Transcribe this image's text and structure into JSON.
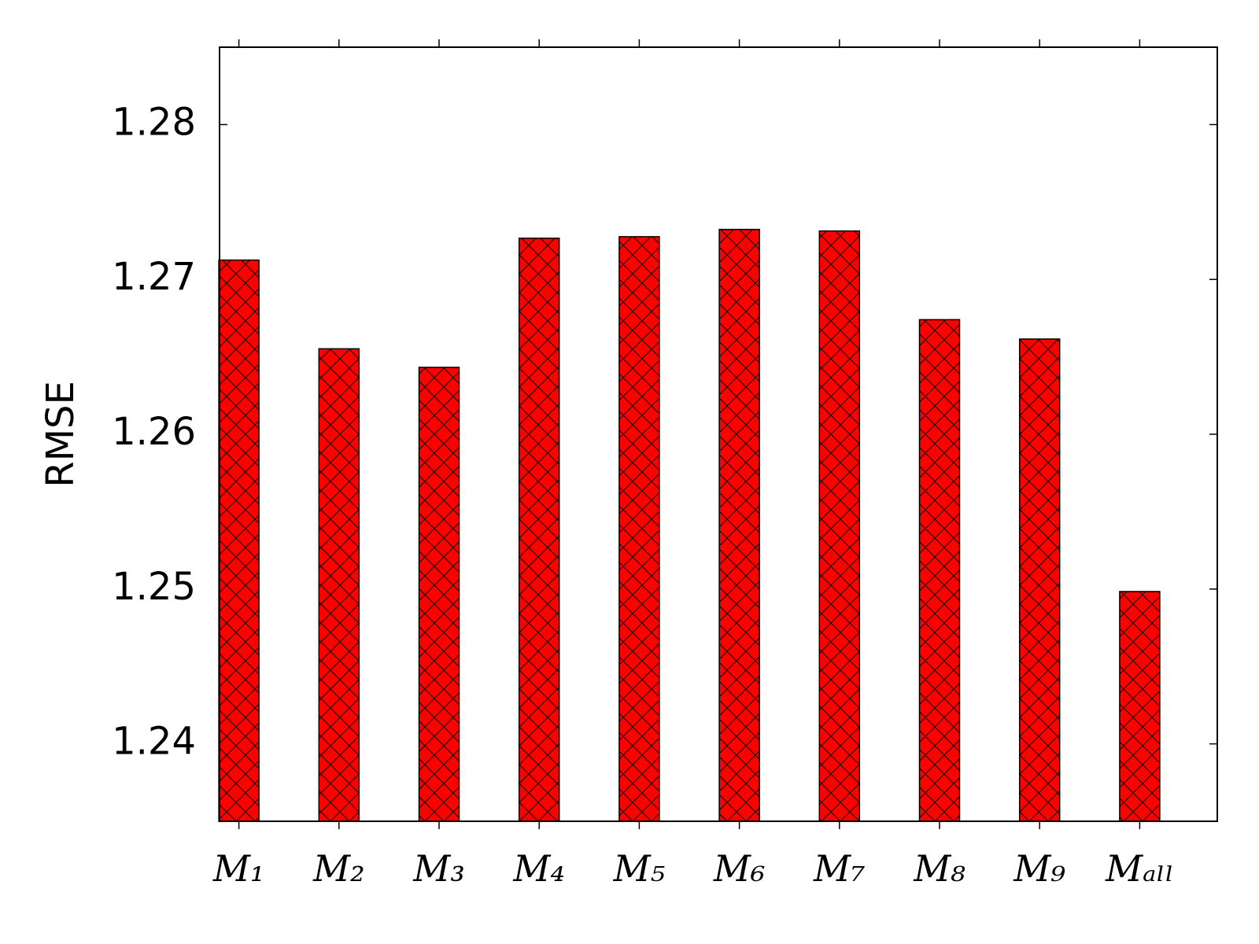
{
  "chart_data": {
    "type": "bar",
    "y_label": "RMSE",
    "categories": [
      "M₁",
      "M₂",
      "M₃",
      "M₄",
      "M₅",
      "M₆",
      "M₇",
      "M₈",
      "M₉",
      "Mₐₗₗ"
    ],
    "values": [
      1.27125,
      1.26552,
      1.26432,
      1.27266,
      1.27276,
      1.27323,
      1.27313,
      1.2674,
      1.26615,
      1.24984
    ],
    "color": "#ff0000",
    "hatch": "x",
    "ylim": [
      1.235,
      1.285
    ],
    "yticks": [
      1.24,
      1.25,
      1.26,
      1.27,
      1.28
    ],
    "grid": false
  }
}
